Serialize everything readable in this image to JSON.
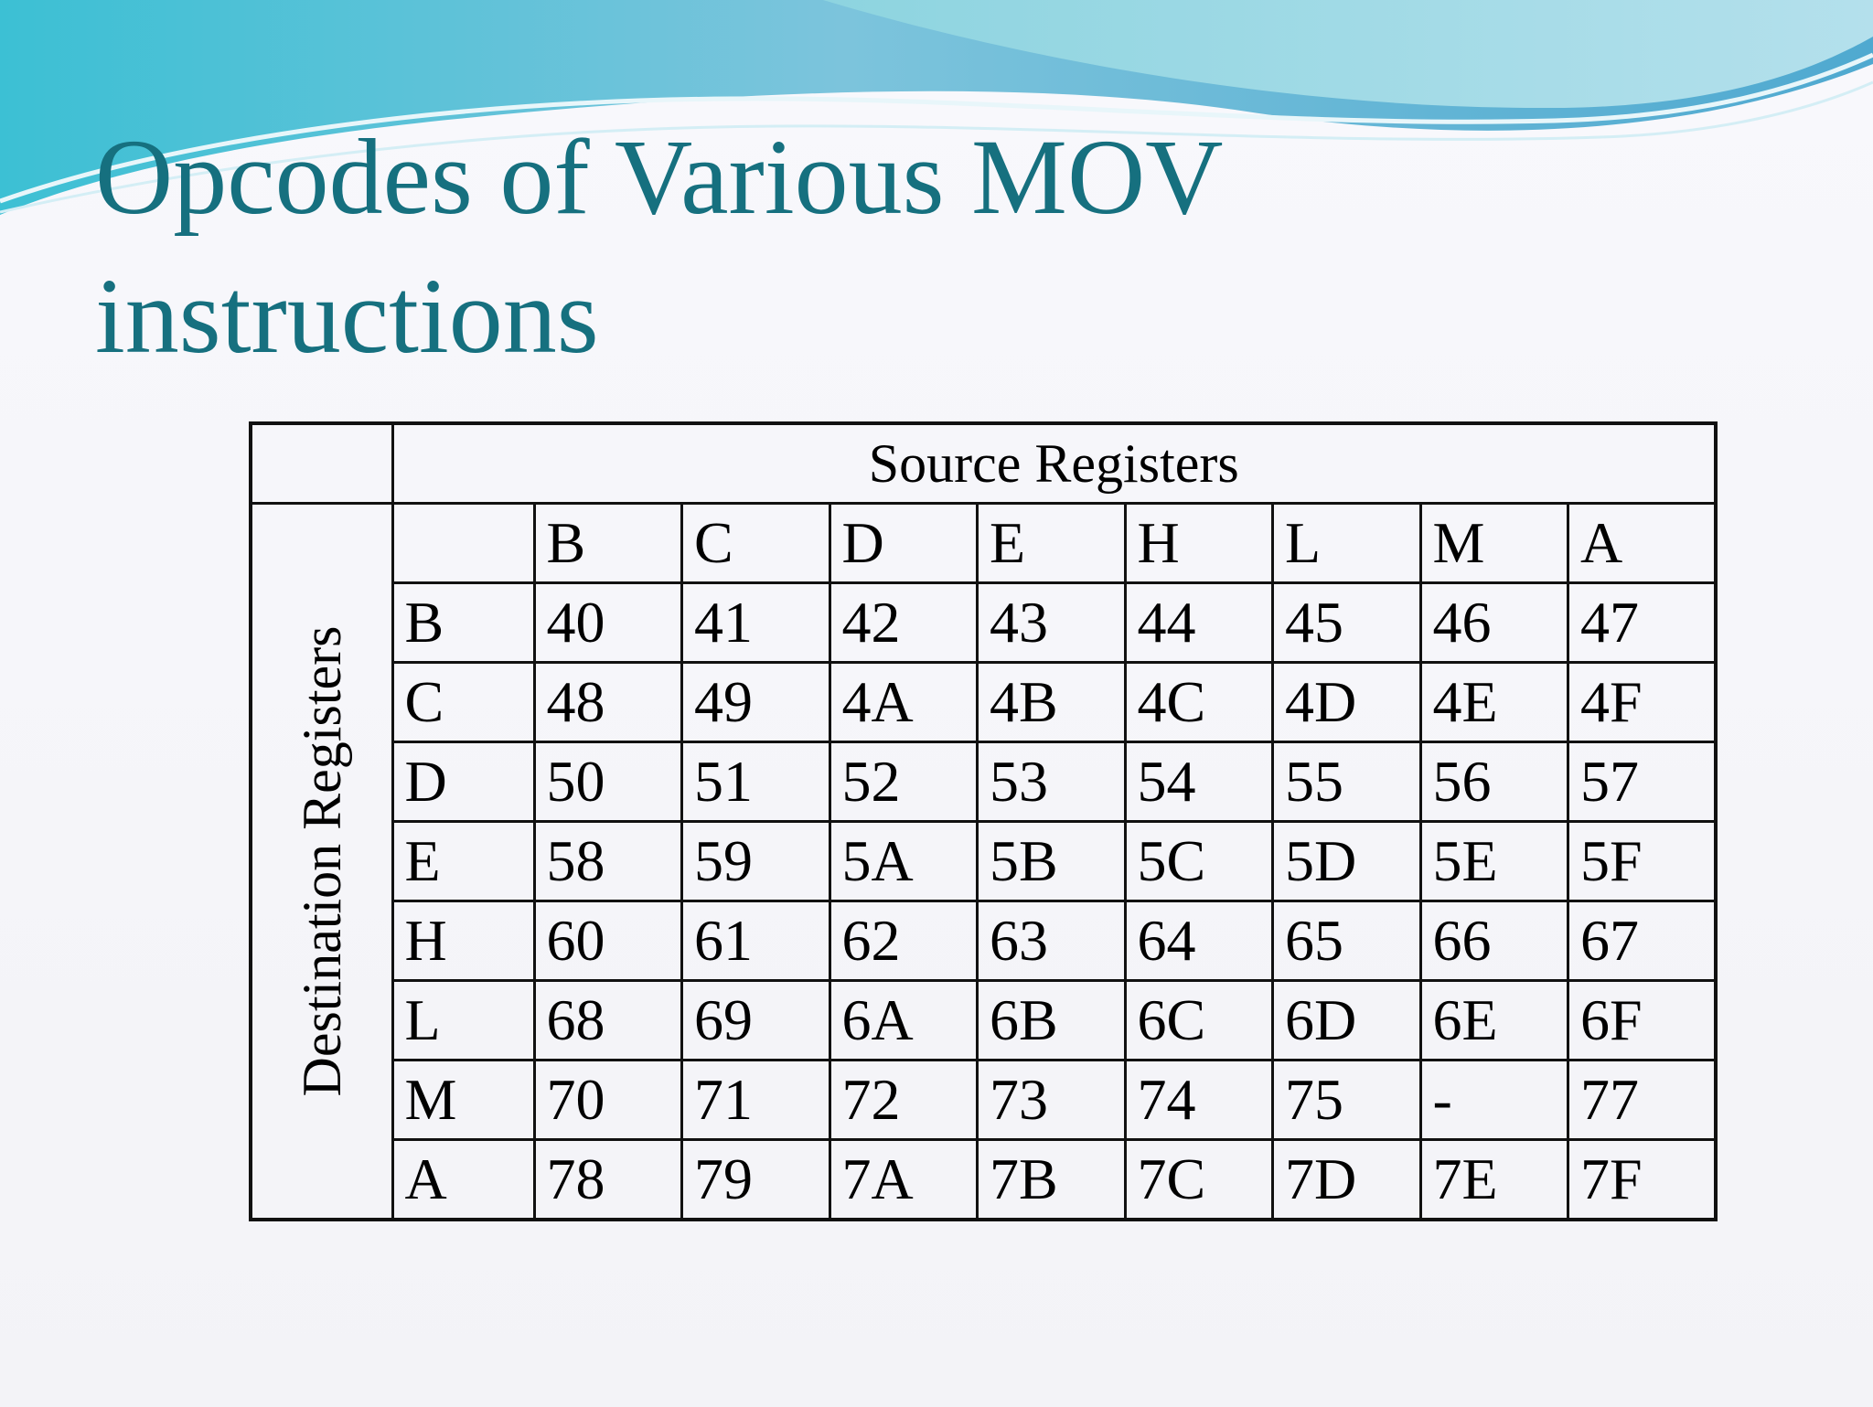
{
  "title": "Opcodes of Various MOV instructions",
  "table": {
    "source_header": "Source Registers",
    "destination_header": "Destination Registers",
    "columns": [
      "B",
      "C",
      "D",
      "E",
      "H",
      "L",
      "M",
      "A"
    ],
    "rows": [
      {
        "register": "B",
        "opcodes": [
          "40",
          "41",
          "42",
          "43",
          "44",
          "45",
          "46",
          "47"
        ]
      },
      {
        "register": "C",
        "opcodes": [
          "48",
          "49",
          "4A",
          "4B",
          "4C",
          "4D",
          "4E",
          "4F"
        ]
      },
      {
        "register": "D",
        "opcodes": [
          "50",
          "51",
          "52",
          "53",
          "54",
          "55",
          "56",
          "57"
        ]
      },
      {
        "register": "E",
        "opcodes": [
          "58",
          "59",
          "5A",
          "5B",
          "5C",
          "5D",
          "5E",
          "5F"
        ]
      },
      {
        "register": "H",
        "opcodes": [
          "60",
          "61",
          "62",
          "63",
          "64",
          "65",
          "66",
          "67"
        ]
      },
      {
        "register": "L",
        "opcodes": [
          "68",
          "69",
          "6A",
          "6B",
          "6C",
          "6D",
          "6E",
          "6F"
        ]
      },
      {
        "register": "M",
        "opcodes": [
          "70",
          "71",
          "72",
          "73",
          "74",
          "75",
          "-",
          "77"
        ]
      },
      {
        "register": "A",
        "opcodes": [
          "78",
          "79",
          "7A",
          "7B",
          "7C",
          "7D",
          "7E",
          "7F"
        ]
      }
    ]
  },
  "colors": {
    "title": "#16707f",
    "wave_main": "#4fb8d6",
    "wave_light": "#bfe6ef",
    "grid": "#111111"
  }
}
